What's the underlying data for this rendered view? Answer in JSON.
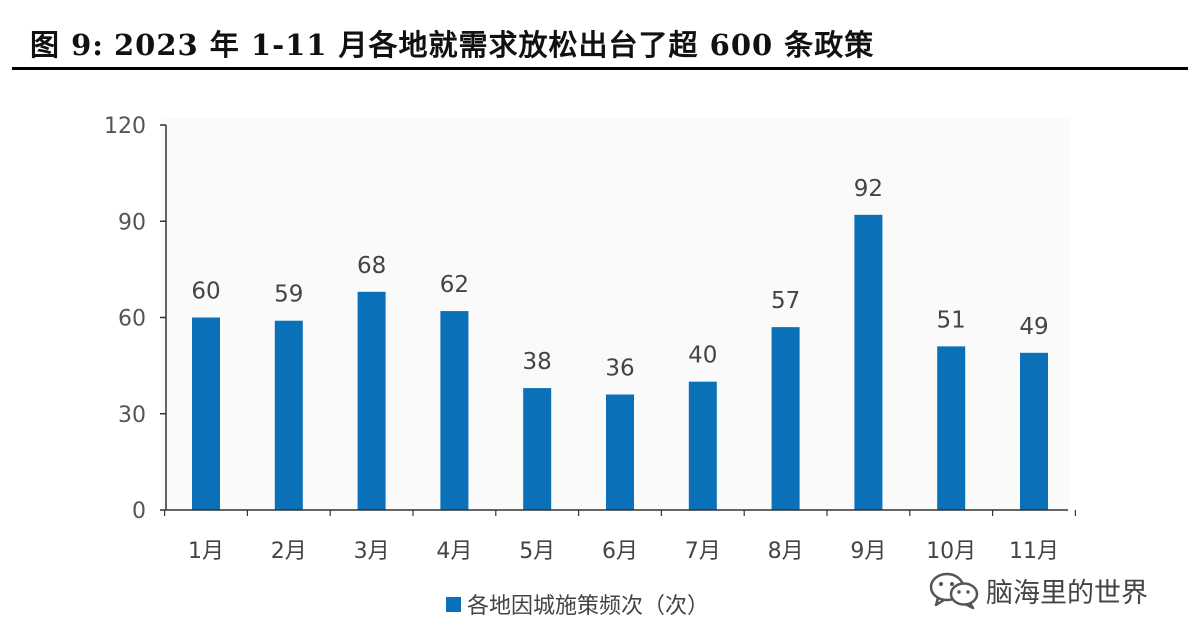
{
  "header": {
    "figure_label": "图 9:",
    "title": "2023 年 1-11 月各地就需求放松出台了超 600 条政策"
  },
  "chart_data": {
    "type": "bar",
    "categories": [
      "1月",
      "2月",
      "3月",
      "4月",
      "5月",
      "6月",
      "7月",
      "8月",
      "9月",
      "10月",
      "11月"
    ],
    "series": [
      {
        "name": "各地因城施策频次（次）",
        "values": [
          60,
          59,
          68,
          62,
          38,
          36,
          40,
          57,
          92,
          51,
          49
        ],
        "color": "#0a70b8"
      }
    ],
    "ylim": [
      0,
      120
    ],
    "yticks": [
      0,
      30,
      60,
      90,
      120
    ],
    "ytick_labels": [
      "0",
      "30",
      "60",
      "90",
      "120"
    ],
    "data_labels": [
      "60",
      "59",
      "68",
      "62",
      "38",
      "36",
      "40",
      "57",
      "92",
      "51",
      "49"
    ],
    "xlabel": "",
    "ylabel": "",
    "grid": false,
    "legend_position": "bottom-center"
  },
  "watermark": {
    "icon": "wechat-icon",
    "text": "脑海里的世界"
  }
}
